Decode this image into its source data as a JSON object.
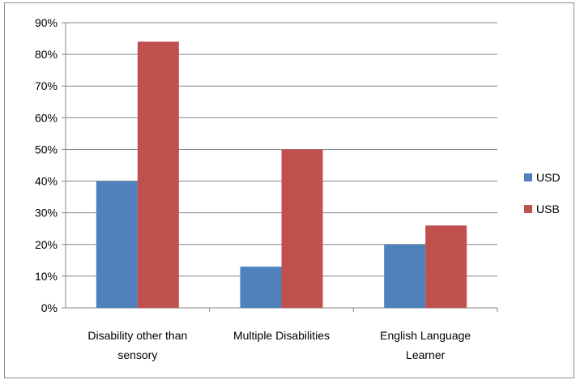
{
  "chart_data": {
    "type": "bar",
    "categories": [
      [
        "Disability other than",
        "sensory"
      ],
      [
        "Multiple Disabilities"
      ],
      [
        "English Language",
        "Learner"
      ]
    ],
    "series": [
      {
        "name": "USD",
        "color": "#4f81bd",
        "values": [
          0.4,
          0.13,
          0.2
        ]
      },
      {
        "name": "USB",
        "color": "#c0504d",
        "values": [
          0.84,
          0.5,
          0.26
        ]
      }
    ],
    "ylim": [
      0,
      0.9
    ],
    "yticks": [
      0,
      0.1,
      0.2,
      0.3,
      0.4,
      0.5,
      0.6,
      0.7,
      0.8,
      0.9
    ],
    "ytick_labels": [
      "0%",
      "10%",
      "20%",
      "30%",
      "40%",
      "50%",
      "60%",
      "70%",
      "80%",
      "90%"
    ],
    "grid": true,
    "legend_position": "right",
    "title": "",
    "xlabel": "",
    "ylabel": ""
  }
}
